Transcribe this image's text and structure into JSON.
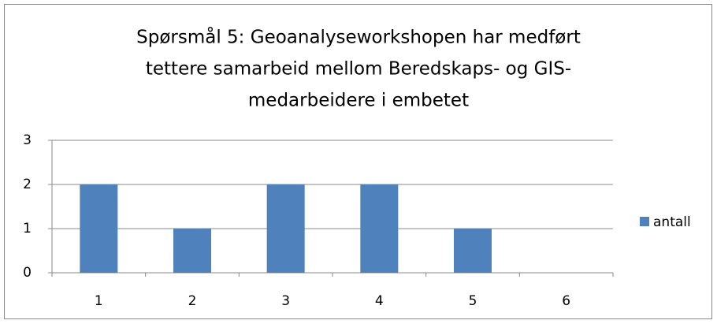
{
  "chart_data": {
    "type": "bar",
    "title": [
      "Spørsmål 5: Geoanalyseworkshopen har medført",
      "tettere samarbeid mellom Beredskaps- og GIS-",
      "medarbeidere i embetet"
    ],
    "categories": [
      "1",
      "2",
      "3",
      "4",
      "5",
      "6"
    ],
    "series": [
      {
        "name": "antall",
        "color": "#4f81bd",
        "values": [
          2,
          1,
          2,
          2,
          1,
          0
        ]
      }
    ],
    "ylim": [
      0,
      3
    ],
    "yticks": [
      0,
      1,
      2,
      3
    ],
    "grid": true,
    "legend": "right"
  }
}
